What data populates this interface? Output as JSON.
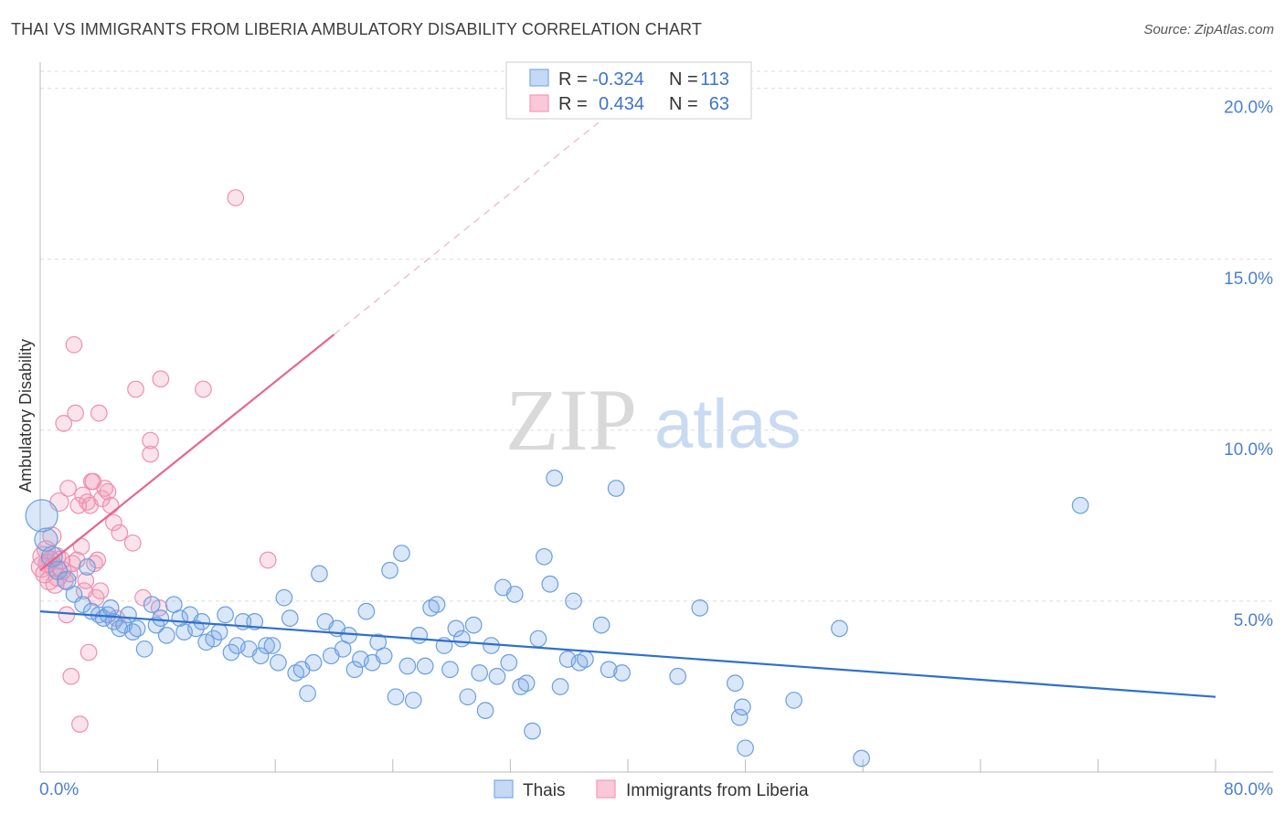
{
  "title": "THAI VS IMMIGRANTS FROM LIBERIA AMBULATORY DISABILITY CORRELATION CHART",
  "source": "Source: ZipAtlas.com",
  "watermark": {
    "zip": "ZIP",
    "atlas": "atlas"
  },
  "colors": {
    "thai": "#7aaae6",
    "thai_line": "#2f6fce",
    "liberia": "#f29ab8",
    "liberia_line": "#e8648f",
    "axis_text": "#4a7fd4",
    "grid": "#dcdcdc"
  },
  "legend": {
    "rows": [
      {
        "r_label": "R =",
        "r_value": "-0.324",
        "n_label": "N =",
        "n_value": "113"
      },
      {
        "r_label": "R =",
        "r_value": "0.434",
        "n_label": "N =",
        "n_value": "63"
      }
    ]
  },
  "chart_data": {
    "type": "scatter",
    "title": "THAI VS IMMIGRANTS FROM LIBERIA AMBULATORY DISABILITY CORRELATION CHART",
    "xlabel": "",
    "ylabel": "Ambulatory Disability",
    "xlim": [
      0,
      80
    ],
    "ylim": [
      0,
      20.5
    ],
    "x_tick_labels": [
      "0.0%",
      "80.0%"
    ],
    "y_ticks": [
      5,
      10,
      15,
      20
    ],
    "y_tick_labels": [
      "5.0%",
      "10.0%",
      "15.0%",
      "20.0%"
    ],
    "grid": true,
    "legend_position": "top-center",
    "series": [
      {
        "name": "Thais",
        "r": -0.324,
        "n": 113,
        "trend": {
          "x": [
            0,
            80
          ],
          "y": [
            4.7,
            2.2
          ]
        },
        "points": [
          [
            0.1,
            7.5,
            14
          ],
          [
            0.4,
            6.8,
            10
          ],
          [
            0.8,
            6.3,
            9
          ],
          [
            1.2,
            5.9,
            8
          ],
          [
            1.8,
            5.6,
            8
          ],
          [
            2.3,
            5.2,
            7
          ],
          [
            2.9,
            4.9,
            7
          ],
          [
            3.2,
            6.0,
            7
          ],
          [
            3.5,
            4.7,
            7
          ],
          [
            4.0,
            4.6,
            7
          ],
          [
            4.3,
            4.5,
            7
          ],
          [
            4.6,
            4.6,
            7
          ],
          [
            4.8,
            4.8,
            7
          ],
          [
            5.0,
            4.4,
            7
          ],
          [
            5.4,
            4.2,
            7
          ],
          [
            5.7,
            4.3,
            7
          ],
          [
            6.0,
            4.6,
            7
          ],
          [
            6.3,
            4.1,
            7
          ],
          [
            6.6,
            4.2,
            7
          ],
          [
            7.1,
            3.6,
            7
          ],
          [
            7.6,
            4.9,
            7
          ],
          [
            7.9,
            4.3,
            7
          ],
          [
            8.2,
            4.5,
            7
          ],
          [
            8.6,
            4.0,
            7
          ],
          [
            9.1,
            4.9,
            7
          ],
          [
            9.5,
            4.5,
            7
          ],
          [
            9.8,
            4.1,
            7
          ],
          [
            10.2,
            4.6,
            7
          ],
          [
            10.6,
            4.2,
            7
          ],
          [
            11.0,
            4.4,
            7
          ],
          [
            11.3,
            3.8,
            7
          ],
          [
            11.8,
            3.9,
            7
          ],
          [
            12.2,
            4.1,
            7
          ],
          [
            12.6,
            4.6,
            7
          ],
          [
            13.0,
            3.5,
            7
          ],
          [
            13.4,
            3.7,
            7
          ],
          [
            13.8,
            4.4,
            7
          ],
          [
            14.2,
            3.6,
            7
          ],
          [
            14.6,
            4.4,
            7
          ],
          [
            15.0,
            3.4,
            7
          ],
          [
            15.4,
            3.7,
            7
          ],
          [
            15.8,
            3.7,
            7
          ],
          [
            16.2,
            3.2,
            7
          ],
          [
            16.6,
            5.1,
            7
          ],
          [
            17.0,
            4.5,
            7
          ],
          [
            17.4,
            2.9,
            7
          ],
          [
            17.8,
            3.0,
            7
          ],
          [
            18.2,
            2.3,
            7
          ],
          [
            18.6,
            3.2,
            7
          ],
          [
            19.0,
            5.8,
            7
          ],
          [
            19.4,
            4.4,
            7
          ],
          [
            19.8,
            3.4,
            7
          ],
          [
            20.2,
            4.2,
            7
          ],
          [
            20.6,
            3.6,
            7
          ],
          [
            21.0,
            4.0,
            7
          ],
          [
            21.4,
            3.0,
            7
          ],
          [
            21.8,
            3.3,
            7
          ],
          [
            22.2,
            4.7,
            7
          ],
          [
            22.6,
            3.2,
            7
          ],
          [
            23.0,
            3.8,
            7
          ],
          [
            23.4,
            3.4,
            7
          ],
          [
            23.8,
            5.9,
            7
          ],
          [
            24.2,
            2.2,
            7
          ],
          [
            24.6,
            6.4,
            7
          ],
          [
            25.0,
            3.1,
            7
          ],
          [
            25.4,
            2.1,
            7
          ],
          [
            25.8,
            4.0,
            7
          ],
          [
            26.2,
            3.1,
            7
          ],
          [
            26.6,
            4.8,
            7
          ],
          [
            27.0,
            4.9,
            7
          ],
          [
            27.5,
            3.7,
            7
          ],
          [
            27.9,
            3.0,
            7
          ],
          [
            28.3,
            4.2,
            7
          ],
          [
            28.7,
            3.9,
            7
          ],
          [
            29.1,
            2.2,
            7
          ],
          [
            29.5,
            4.3,
            7
          ],
          [
            29.9,
            2.9,
            7
          ],
          [
            30.3,
            1.8,
            7
          ],
          [
            30.7,
            3.7,
            7
          ],
          [
            31.1,
            2.8,
            7
          ],
          [
            31.5,
            5.4,
            7
          ],
          [
            31.9,
            3.2,
            7
          ],
          [
            32.3,
            5.2,
            7
          ],
          [
            32.7,
            2.5,
            7
          ],
          [
            33.1,
            2.6,
            7
          ],
          [
            33.5,
            1.2,
            7
          ],
          [
            33.9,
            3.9,
            7
          ],
          [
            34.3,
            6.3,
            7
          ],
          [
            34.7,
            5.5,
            7
          ],
          [
            35.0,
            8.6,
            7
          ],
          [
            35.4,
            2.5,
            7
          ],
          [
            35.9,
            3.3,
            7
          ],
          [
            36.3,
            5.0,
            7
          ],
          [
            36.7,
            3.2,
            7
          ],
          [
            37.1,
            3.3,
            7
          ],
          [
            38.2,
            4.3,
            7
          ],
          [
            38.7,
            3.0,
            7
          ],
          [
            39.2,
            8.3,
            7
          ],
          [
            39.6,
            2.9,
            7
          ],
          [
            43.4,
            2.8,
            7
          ],
          [
            44.9,
            4.8,
            7
          ],
          [
            47.3,
            2.6,
            7
          ],
          [
            47.6,
            1.6,
            7
          ],
          [
            47.8,
            1.9,
            7
          ],
          [
            48.0,
            0.7,
            7
          ],
          [
            51.3,
            2.1,
            7
          ],
          [
            54.4,
            4.2,
            7
          ],
          [
            55.9,
            0.4,
            7
          ],
          [
            70.8,
            7.8,
            7
          ]
        ]
      },
      {
        "name": "Immigrants from Liberia",
        "r": 0.434,
        "n": 63,
        "trend": {
          "x": [
            0,
            20
          ],
          "y": [
            5.9,
            12.8
          ]
        },
        "trend_ext": {
          "x": [
            20,
            38
          ],
          "y": [
            12.8,
            19.0
          ]
        },
        "points": [
          [
            0.1,
            6.0,
            9
          ],
          [
            0.2,
            6.3,
            9
          ],
          [
            0.3,
            5.8,
            8
          ],
          [
            0.4,
            6.5,
            8
          ],
          [
            0.5,
            6.1,
            8
          ],
          [
            0.6,
            5.6,
            8
          ],
          [
            0.7,
            6.2,
            8
          ],
          [
            0.8,
            6.9,
            8
          ],
          [
            0.9,
            6.0,
            8
          ],
          [
            1.0,
            5.5,
            8
          ],
          [
            1.1,
            6.3,
            8
          ],
          [
            1.2,
            5.7,
            8
          ],
          [
            1.3,
            7.9,
            8
          ],
          [
            1.4,
            6.2,
            8
          ],
          [
            1.5,
            5.9,
            8
          ],
          [
            1.6,
            10.2,
            7
          ],
          [
            1.7,
            5.6,
            7
          ],
          [
            1.8,
            4.6,
            7
          ],
          [
            1.9,
            8.3,
            7
          ],
          [
            2.0,
            5.8,
            7
          ],
          [
            2.1,
            2.8,
            7
          ],
          [
            2.2,
            6.1,
            7
          ],
          [
            2.3,
            12.5,
            7
          ],
          [
            2.4,
            10.5,
            7
          ],
          [
            2.5,
            6.2,
            7
          ],
          [
            2.6,
            7.8,
            7
          ],
          [
            2.7,
            1.4,
            7
          ],
          [
            2.8,
            6.6,
            7
          ],
          [
            2.9,
            8.1,
            7
          ],
          [
            3.0,
            5.3,
            7
          ],
          [
            3.1,
            5.6,
            7
          ],
          [
            3.2,
            7.9,
            7
          ],
          [
            3.3,
            3.5,
            7
          ],
          [
            3.4,
            7.8,
            7
          ],
          [
            3.5,
            8.5,
            7
          ],
          [
            3.6,
            8.5,
            7
          ],
          [
            3.7,
            6.1,
            7
          ],
          [
            3.8,
            5.1,
            7
          ],
          [
            3.9,
            6.2,
            7
          ],
          [
            4.0,
            10.5,
            7
          ],
          [
            4.1,
            5.3,
            7
          ],
          [
            4.2,
            8.0,
            7
          ],
          [
            4.4,
            8.3,
            7
          ],
          [
            4.6,
            8.2,
            7
          ],
          [
            4.8,
            7.8,
            7
          ],
          [
            5.0,
            7.3,
            7
          ],
          [
            5.2,
            4.5,
            7
          ],
          [
            5.4,
            7.0,
            7
          ],
          [
            6.3,
            6.7,
            7
          ],
          [
            6.5,
            11.2,
            7
          ],
          [
            7.0,
            5.1,
            7
          ],
          [
            7.5,
            9.7,
            7
          ],
          [
            7.5,
            9.3,
            7
          ],
          [
            8.1,
            4.8,
            7
          ],
          [
            8.2,
            11.5,
            7
          ],
          [
            11.1,
            11.2,
            7
          ],
          [
            13.3,
            16.8,
            7
          ],
          [
            15.5,
            6.2,
            7
          ]
        ]
      }
    ]
  },
  "bottom_legend": {
    "thai": "Thais",
    "liberia": "Immigrants from Liberia"
  }
}
